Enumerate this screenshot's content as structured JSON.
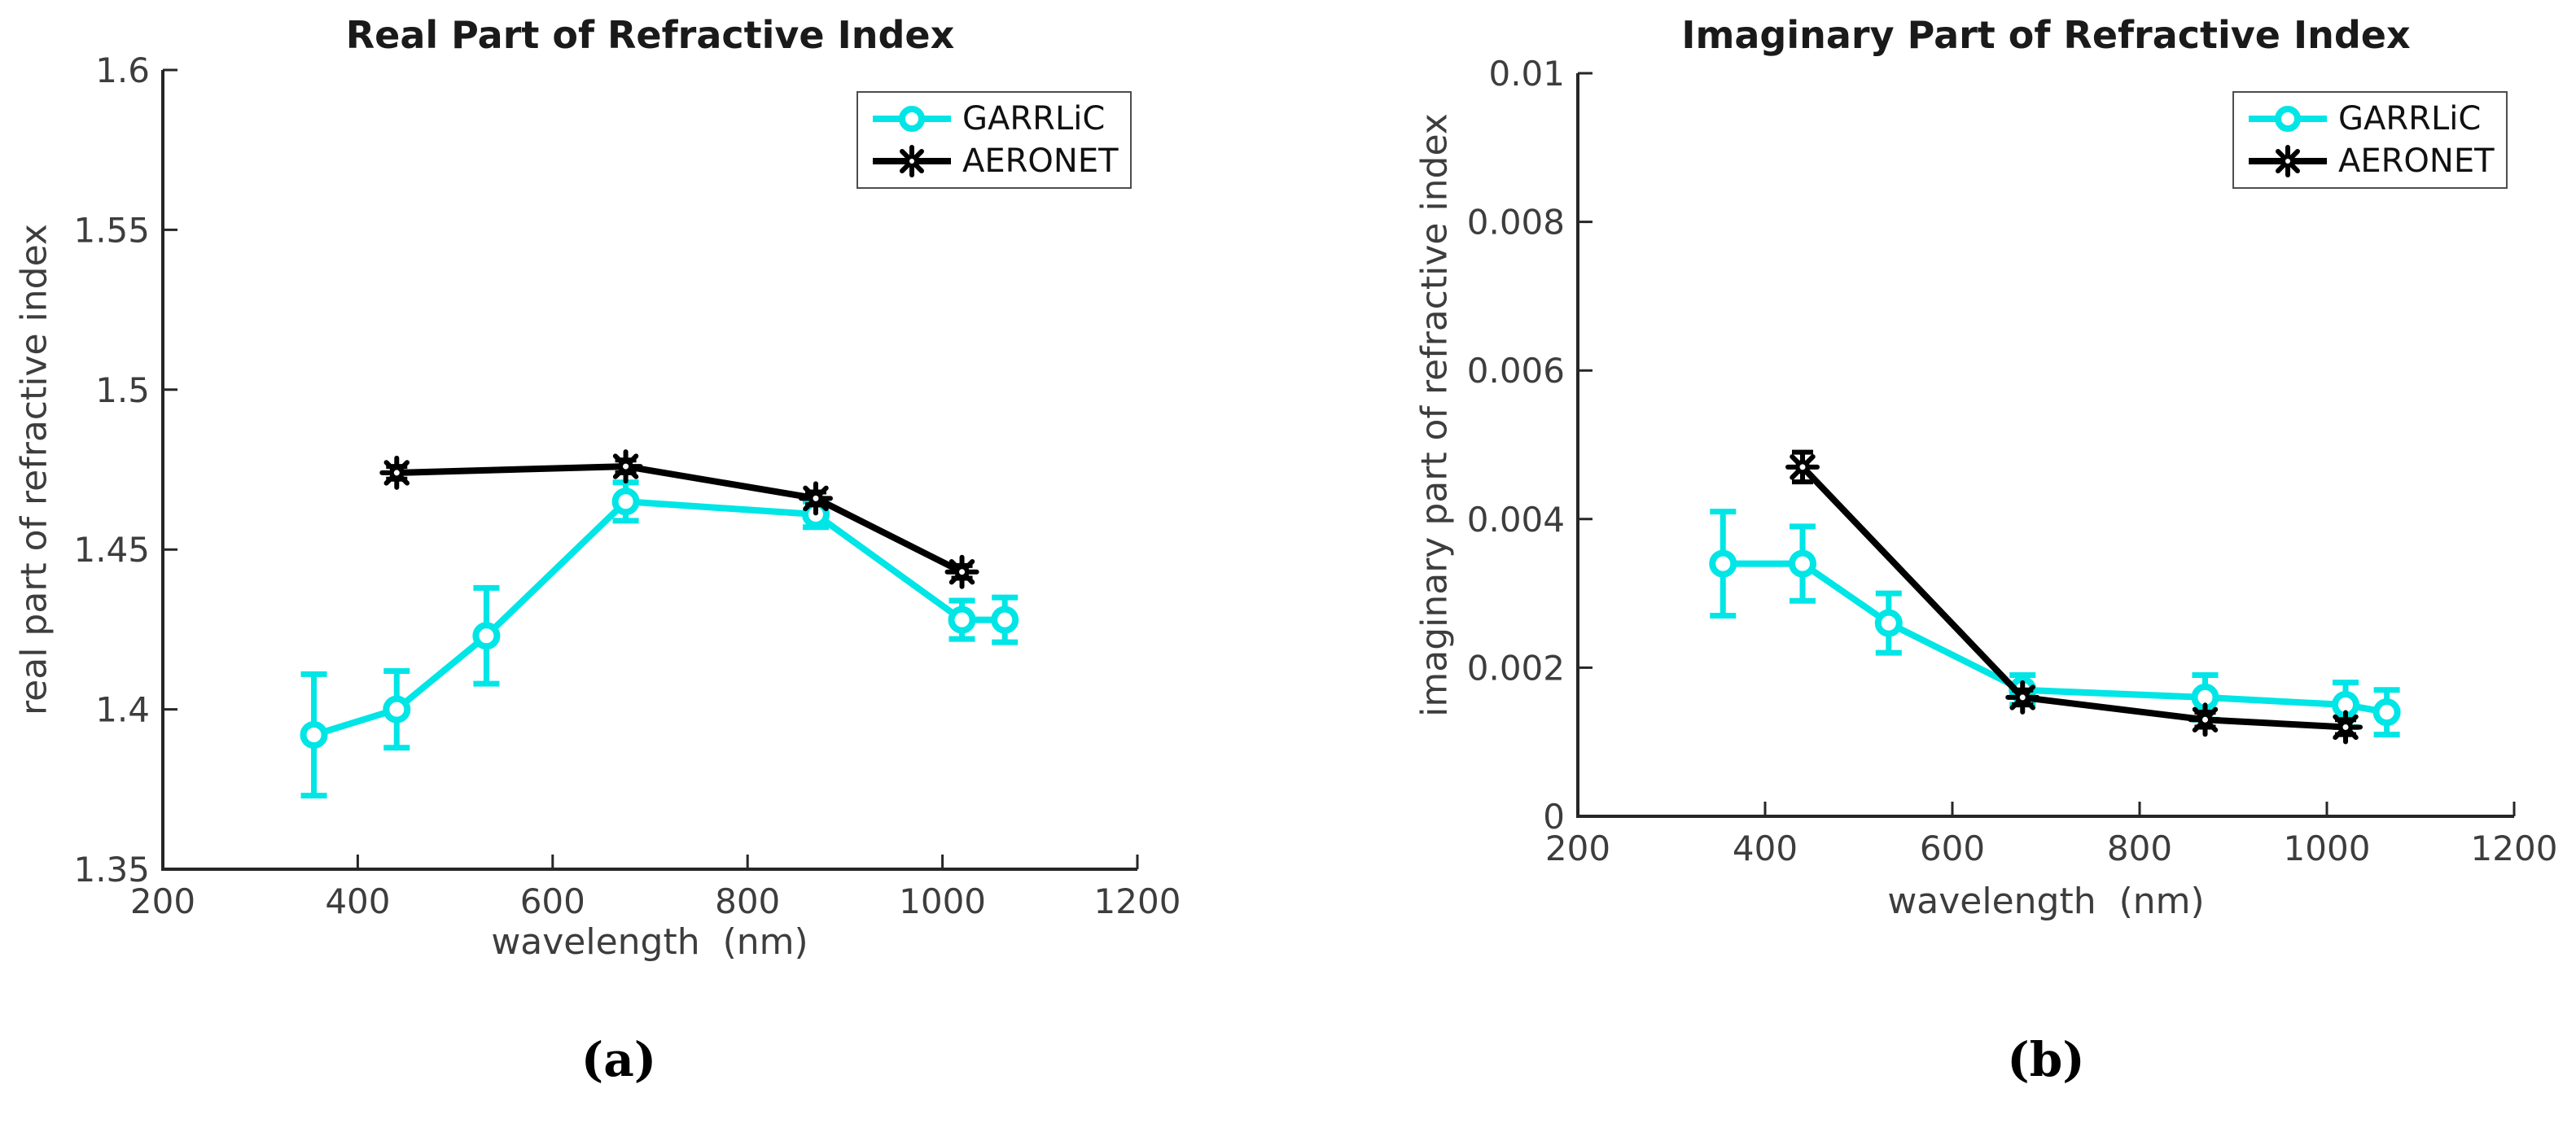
{
  "figure_type": "two-panel errorbar line chart",
  "sublabels": [
    "(a)",
    "(b)"
  ],
  "colors": {
    "garrlic": "#00e5e6",
    "aeronet": "#000000",
    "axis": "#262626",
    "tick_text": "#3d3d3d"
  },
  "chart_data": [
    {
      "type": "line",
      "title": "Real Part of Refractive Index",
      "xlabel": "wavelength  (nm)",
      "ylabel": "real part of refractive index",
      "xlim": [
        200,
        1200
      ],
      "ylim": [
        1.35,
        1.6
      ],
      "xticks": [
        200,
        400,
        600,
        800,
        1000,
        1200
      ],
      "xtick_labels": [
        "200",
        "400",
        "600",
        "800",
        "1000",
        "1200"
      ],
      "yticks": [
        1.35,
        1.4,
        1.45,
        1.5,
        1.55,
        1.6
      ],
      "ytick_labels": [
        "1.35",
        "1.4",
        "1.45",
        "1.5",
        "1.55",
        "1.6"
      ],
      "grid": false,
      "legend_position": "top-right",
      "series": [
        {
          "name": "GARRLiC",
          "color": "#00e5e6",
          "marker": "circle",
          "x": [
            355,
            440,
            532,
            675,
            870,
            1020,
            1064
          ],
          "y": [
            1.392,
            1.4,
            1.423,
            1.465,
            1.461,
            1.428,
            1.428
          ],
          "yerr": [
            0.019,
            0.012,
            0.015,
            0.006,
            0.004,
            0.006,
            0.007
          ]
        },
        {
          "name": "AERONET",
          "color": "#000000",
          "marker": "star",
          "x": [
            440,
            675,
            870,
            1020
          ],
          "y": [
            1.474,
            1.476,
            1.466,
            1.443
          ],
          "yerr": [
            0.002,
            0.002,
            0.002,
            0.002
          ]
        }
      ]
    },
    {
      "type": "line",
      "title": "Imaginary Part of Refractive Index",
      "xlabel": "wavelength  (nm)",
      "ylabel": "imaginary part of refractive index",
      "xlim": [
        200,
        1200
      ],
      "ylim": [
        0,
        0.01
      ],
      "xticks": [
        200,
        400,
        600,
        800,
        1000,
        1200
      ],
      "xtick_labels": [
        "200",
        "400",
        "600",
        "800",
        "1000",
        "1200"
      ],
      "yticks": [
        0,
        0.002,
        0.004,
        0.006,
        0.008,
        0.01
      ],
      "ytick_labels": [
        "0",
        "0.002",
        "0.004",
        "0.006",
        "0.008",
        "0.01"
      ],
      "grid": false,
      "legend_position": "top-right",
      "series": [
        {
          "name": "GARRLiC",
          "color": "#00e5e6",
          "marker": "circle",
          "x": [
            355,
            440,
            532,
            675,
            870,
            1020,
            1064
          ],
          "y": [
            0.0034,
            0.0034,
            0.0026,
            0.0017,
            0.0016,
            0.0015,
            0.0014
          ],
          "yerr": [
            0.0007,
            0.0005,
            0.0004,
            0.0002,
            0.0003,
            0.0003,
            0.0003
          ]
        },
        {
          "name": "AERONET",
          "color": "#000000",
          "marker": "star",
          "x": [
            440,
            675,
            870,
            1020
          ],
          "y": [
            0.0047,
            0.0016,
            0.0013,
            0.0012
          ],
          "yerr": [
            0.0002,
            0.0001,
            0.0001,
            0.0001
          ]
        }
      ]
    }
  ]
}
